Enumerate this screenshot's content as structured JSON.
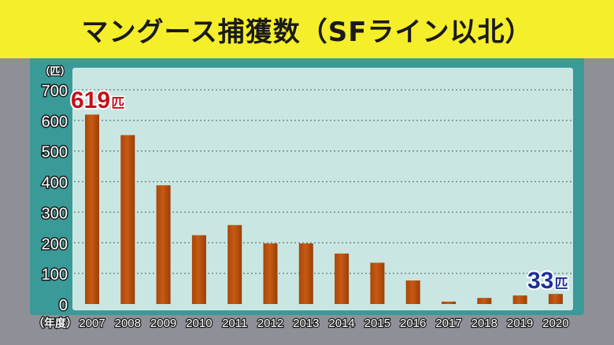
{
  "title": "マングース捕獲数（SFライン以北）",
  "colors": {
    "title_bg": "#f5ee2a",
    "panel": "#3a9a98",
    "plot_bg": "#c9e6e2",
    "bar": "#c85a12",
    "highlight_red": "#c0121a",
    "highlight_blue": "#1c2f9a"
  },
  "chart_data": {
    "type": "bar",
    "title": "マングース捕獲数（SFライン以北）",
    "ylabel": "（匹）",
    "xlabel": "（年度）",
    "ylim": [
      0,
      700
    ],
    "yticks": [
      0,
      100,
      200,
      300,
      400,
      500,
      600,
      700
    ],
    "categories": [
      "2007",
      "2008",
      "2009",
      "2010",
      "2011",
      "2012",
      "2013",
      "2014",
      "2015",
      "2016",
      "2017",
      "2018",
      "2019",
      "2020"
    ],
    "values": [
      619,
      552,
      388,
      225,
      258,
      198,
      198,
      165,
      135,
      77,
      8,
      20,
      28,
      33
    ],
    "grid": true,
    "annotations": [
      {
        "category": "2007",
        "text": "619",
        "unit": "匹",
        "color": "red"
      },
      {
        "category": "2020",
        "text": "33",
        "unit": "匹",
        "color": "blue"
      }
    ]
  }
}
